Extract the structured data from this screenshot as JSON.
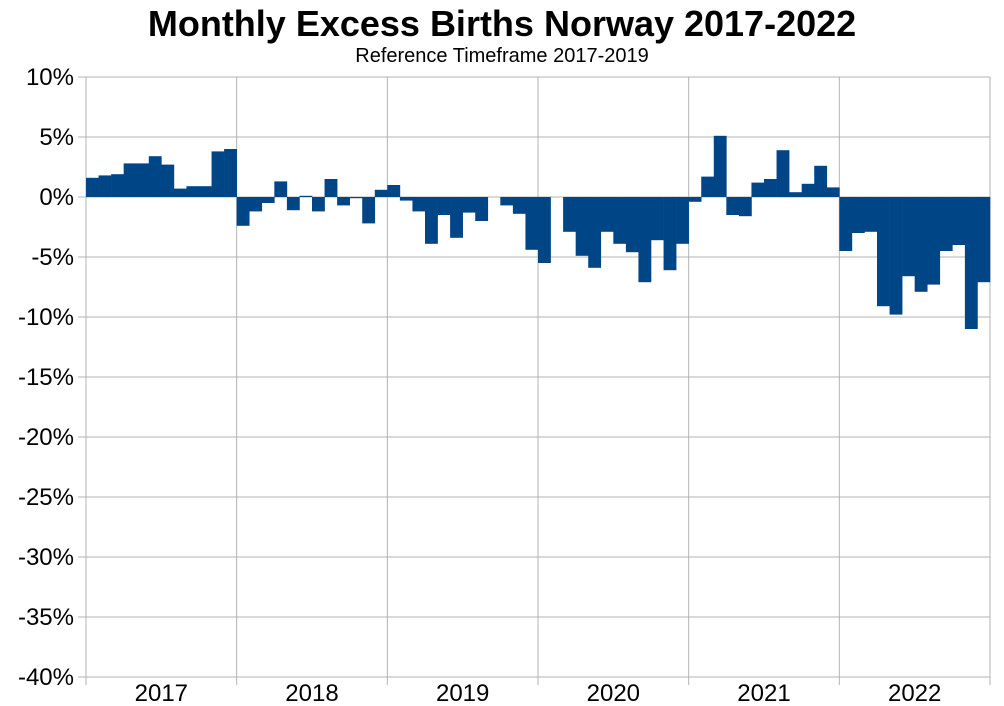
{
  "chart_data": {
    "type": "bar",
    "title": "Monthly Excess Births Norway 2017-2022",
    "subtitle": "Reference Timeframe 2017-2019",
    "xlabel": "",
    "ylabel": "",
    "ylim": [
      -40,
      10
    ],
    "y_ticks": [
      "10%",
      "5%",
      "0%",
      "-5%",
      "-10%",
      "-15%",
      "-20%",
      "-25%",
      "-30%",
      "-35%",
      "-40%"
    ],
    "y_tick_values": [
      10,
      5,
      0,
      -5,
      -10,
      -15,
      -20,
      -25,
      -30,
      -35,
      -40
    ],
    "x_tick_labels": [
      "2017",
      "2018",
      "2019",
      "2020",
      "2021",
      "2022"
    ],
    "grid": true,
    "bar_color": "#004586",
    "series": [
      {
        "values": [
          1.6,
          1.8,
          1.9,
          2.8,
          2.8,
          3.4,
          2.7,
          0.7,
          0.9,
          0.9,
          3.8,
          4.0,
          -2.4,
          -1.2,
          -0.5,
          1.3,
          -1.1,
          0.1,
          -1.2,
          1.5,
          -0.7,
          -0.1,
          -2.2,
          0.6,
          1.0,
          -0.3,
          -1.2,
          -3.9,
          -1.5,
          -3.4,
          -1.3,
          -2.0,
          0.0,
          -0.7,
          -1.4,
          -4.4,
          -5.5,
          0.0,
          -2.9,
          -4.9,
          -5.9,
          -2.9,
          -3.9,
          -4.6,
          -7.1,
          -3.6,
          -6.1,
          -3.9,
          -0.4,
          1.7,
          5.1,
          -1.5,
          -1.6,
          1.2,
          1.5,
          3.9,
          0.4,
          1.1,
          2.6,
          0.8,
          -4.5,
          -3.0,
          -2.9,
          -9.1,
          -9.8,
          -6.6,
          -7.9,
          -7.3,
          -4.5,
          -4.0,
          -11.0,
          -7.1
        ]
      }
    ]
  }
}
